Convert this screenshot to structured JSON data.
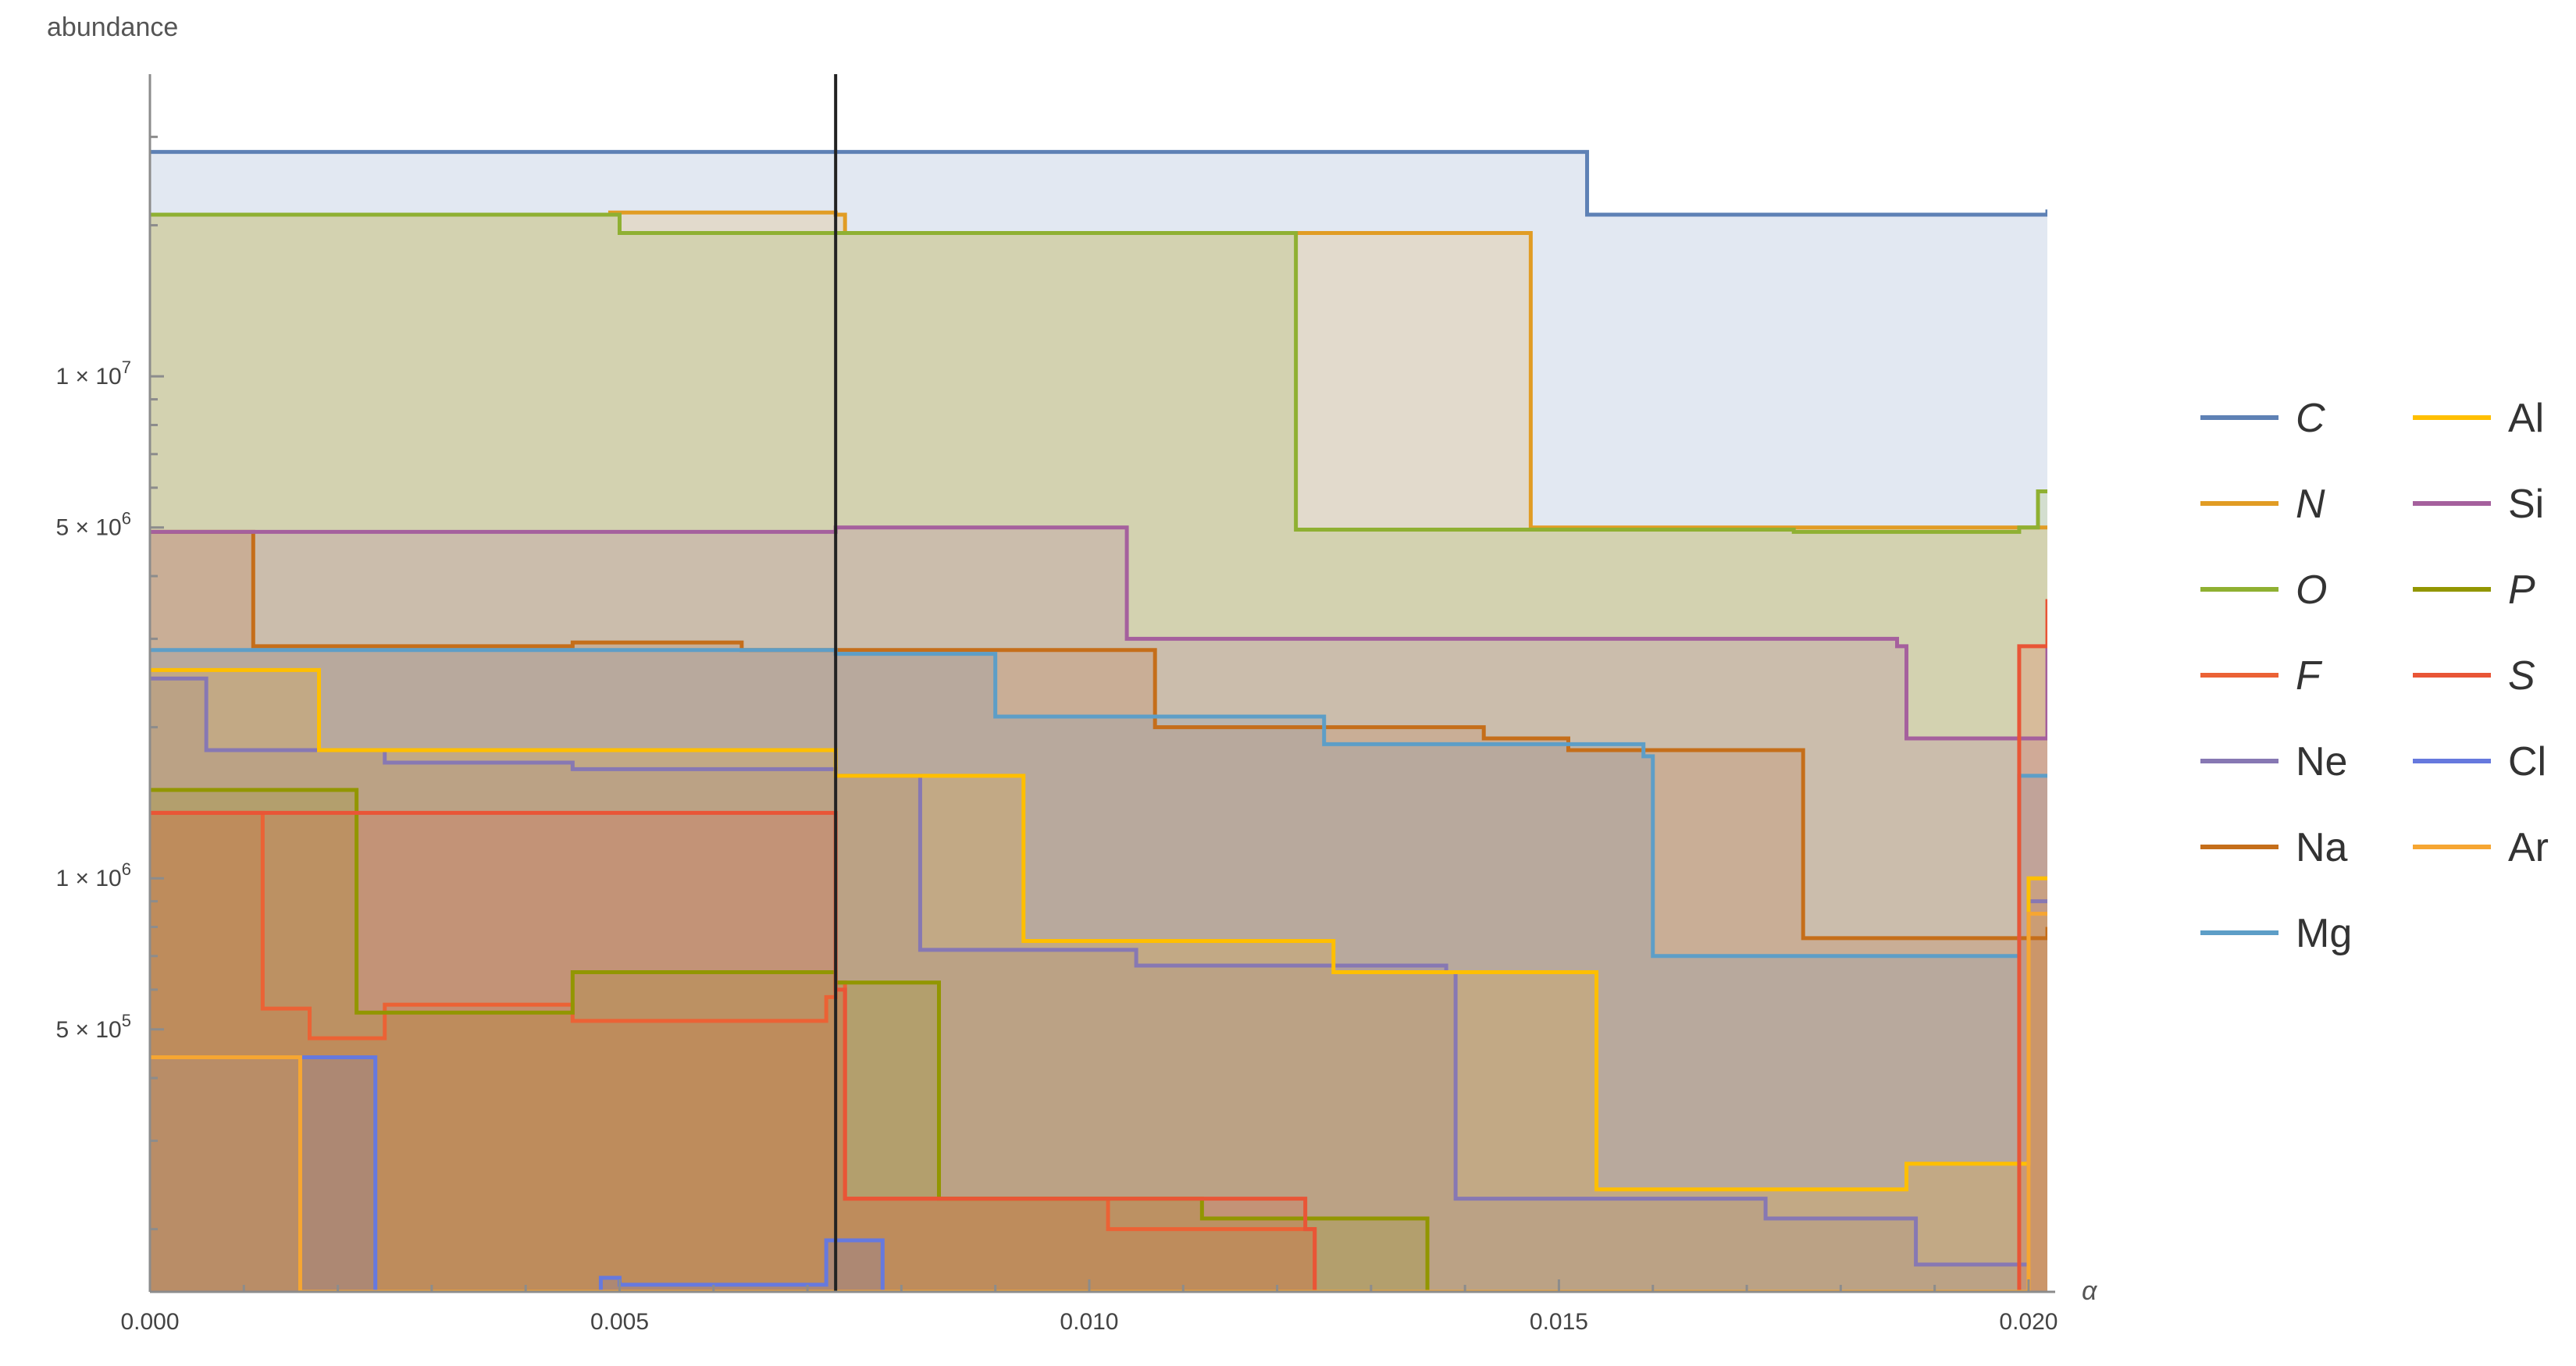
{
  "chart_data": {
    "type": "area",
    "title": "",
    "xlabel": "α",
    "ylabel": "abundance",
    "xlim": [
      0,
      0.0202
    ],
    "ylim": [
      150000,
      40000000
    ],
    "yscale": "log",
    "grid": false,
    "x_ticks": [
      {
        "value": 0.0,
        "label": "0.000"
      },
      {
        "value": 0.005,
        "label": "0.005"
      },
      {
        "value": 0.01,
        "label": "0.010"
      },
      {
        "value": 0.015,
        "label": "0.015"
      },
      {
        "value": 0.02,
        "label": "0.020"
      }
    ],
    "y_ticks": [
      {
        "value": 500000,
        "label": "5 × 10",
        "exp": "5"
      },
      {
        "value": 1000000,
        "label": "1 × 10",
        "exp": "6"
      },
      {
        "value": 5000000,
        "label": "5 × 10",
        "exp": "6"
      },
      {
        "value": 10000000,
        "label": "1 × 10",
        "exp": "7"
      }
    ],
    "y_minor_ticks": [
      200000,
      300000,
      400000,
      600000,
      700000,
      800000,
      900000,
      2000000,
      3000000,
      4000000,
      6000000,
      7000000,
      8000000,
      9000000,
      20000000,
      30000000
    ],
    "vertical_marker": 0.0073,
    "legend_position": "right",
    "series": [
      {
        "name": "C",
        "italic": true,
        "color": "#5e81b5",
        "points": [
          [
            0,
            28000000
          ],
          [
            0.0152,
            28000000
          ],
          [
            0.0153,
            21000000
          ],
          [
            0.0199,
            21000000
          ],
          [
            0.0202,
            21500000
          ]
        ]
      },
      {
        "name": "N",
        "italic": true,
        "color": "#e19c24",
        "points": [
          [
            0,
            21000000
          ],
          [
            0.0049,
            21200000
          ],
          [
            0.0073,
            21000000
          ],
          [
            0.0074,
            19300000
          ],
          [
            0.0146,
            19300000
          ],
          [
            0.0147,
            5000000
          ],
          [
            0.0202,
            5000000
          ]
        ]
      },
      {
        "name": "O",
        "italic": true,
        "color": "#8fb032",
        "points": [
          [
            0,
            21000000
          ],
          [
            0.0049,
            21000000
          ],
          [
            0.005,
            19300000
          ],
          [
            0.0121,
            19300000
          ],
          [
            0.0122,
            4950000
          ],
          [
            0.0175,
            4900000
          ],
          [
            0.0199,
            5000000
          ],
          [
            0.0201,
            5900000
          ],
          [
            0.0202,
            5900000
          ]
        ]
      },
      {
        "name": "F",
        "italic": true,
        "color": "#eb6235",
        "points": [
          [
            0,
            1350000
          ],
          [
            0.0011,
            1350000
          ],
          [
            0.0012,
            550000
          ],
          [
            0.0017,
            480000
          ],
          [
            0.0025,
            560000
          ],
          [
            0.0045,
            520000
          ],
          [
            0.0072,
            580000
          ],
          [
            0.0073,
            620000
          ],
          [
            0.0074,
            230000
          ],
          [
            0.0101,
            230000
          ],
          [
            0.0102,
            200000
          ],
          [
            0.0123,
            200000
          ],
          [
            0.0124,
            150000
          ]
        ]
      },
      {
        "name": "Ne",
        "italic": false,
        "color": "#8778b3",
        "points": [
          [
            0,
            2500000
          ],
          [
            0.0005,
            2500000
          ],
          [
            0.0006,
            1800000
          ],
          [
            0.0025,
            1700000
          ],
          [
            0.0045,
            1650000
          ],
          [
            0.0073,
            1600000
          ],
          [
            0.0081,
            1600000
          ],
          [
            0.0082,
            720000
          ],
          [
            0.0105,
            670000
          ],
          [
            0.0138,
            650000
          ],
          [
            0.0139,
            230000
          ],
          [
            0.0164,
            230000
          ],
          [
            0.0172,
            210000
          ],
          [
            0.0186,
            210000
          ],
          [
            0.0188,
            170000
          ],
          [
            0.0199,
            170000
          ],
          [
            0.02,
            900000
          ],
          [
            0.0202,
            900000
          ]
        ]
      },
      {
        "name": "Na",
        "italic": false,
        "color": "#c56e1a",
        "points": [
          [
            0,
            4900000
          ],
          [
            0.001,
            4900000
          ],
          [
            0.0011,
            2900000
          ],
          [
            0.0045,
            2950000
          ],
          [
            0.0061,
            2950000
          ],
          [
            0.0063,
            2850000
          ],
          [
            0.0105,
            2850000
          ],
          [
            0.0107,
            2000000
          ],
          [
            0.0142,
            1900000
          ],
          [
            0.0151,
            1800000
          ],
          [
            0.0175,
            1800000
          ],
          [
            0.0176,
            760000
          ],
          [
            0.0202,
            800000
          ]
        ]
      },
      {
        "name": "Mg",
        "italic": false,
        "color": "#5d9ec7",
        "points": [
          [
            0,
            2850000
          ],
          [
            0.0045,
            2850000
          ],
          [
            0.0073,
            2800000
          ],
          [
            0.0089,
            2800000
          ],
          [
            0.009,
            2100000
          ],
          [
            0.0125,
            1850000
          ],
          [
            0.0159,
            1750000
          ],
          [
            0.016,
            700000
          ],
          [
            0.0198,
            700000
          ],
          [
            0.0199,
            1600000
          ],
          [
            0.0202,
            1600000
          ]
        ]
      },
      {
        "name": "Al",
        "italic": false,
        "color": "#ffbf00",
        "points": [
          [
            0,
            2600000
          ],
          [
            0.0017,
            2600000
          ],
          [
            0.0018,
            1800000
          ],
          [
            0.0047,
            1800000
          ],
          [
            0.0073,
            1600000
          ],
          [
            0.0081,
            1600000
          ],
          [
            0.0092,
            1600000
          ],
          [
            0.0093,
            750000
          ],
          [
            0.0126,
            650000
          ],
          [
            0.0139,
            650000
          ],
          [
            0.0153,
            650000
          ],
          [
            0.0154,
            240000
          ],
          [
            0.0175,
            240000
          ],
          [
            0.0187,
            270000
          ],
          [
            0.0199,
            270000
          ],
          [
            0.02,
            1000000
          ],
          [
            0.0202,
            1000000
          ]
        ]
      },
      {
        "name": "Si",
        "italic": false,
        "color": "#a5609d",
        "points": [
          [
            0,
            4900000
          ],
          [
            0.0073,
            5000000
          ],
          [
            0.0103,
            5000000
          ],
          [
            0.0104,
            3000000
          ],
          [
            0.0186,
            2900000
          ],
          [
            0.0187,
            1900000
          ],
          [
            0.0202,
            2900000
          ]
        ]
      },
      {
        "name": "P",
        "italic": true,
        "color": "#929600",
        "points": [
          [
            0,
            1500000
          ],
          [
            0.0021,
            1500000
          ],
          [
            0.0022,
            540000
          ],
          [
            0.0045,
            650000
          ],
          [
            0.0073,
            620000
          ],
          [
            0.0083,
            620000
          ],
          [
            0.0084,
            230000
          ],
          [
            0.0112,
            210000
          ],
          [
            0.0135,
            210000
          ],
          [
            0.0136,
            150000
          ]
        ]
      },
      {
        "name": "S",
        "italic": true,
        "color": "#e95536",
        "points": [
          [
            0,
            1350000
          ],
          [
            0.0011,
            1350000
          ],
          [
            0.0073,
            600000
          ],
          [
            0.0074,
            230000
          ],
          [
            0.0123,
            200000
          ],
          [
            0.0124,
            150000
          ],
          [
            0.0199,
            2900000
          ],
          [
            0.0202,
            3600000
          ]
        ]
      },
      {
        "name": "Cl",
        "italic": false,
        "color": "#6679de",
        "points": [
          [
            0,
            440000
          ],
          [
            0.0023,
            440000
          ],
          [
            0.0024,
            150000
          ],
          [
            0.0048,
            160000
          ],
          [
            0.005,
            155000
          ],
          [
            0.0071,
            155000
          ],
          [
            0.0072,
            190000
          ],
          [
            0.0077,
            190000
          ],
          [
            0.0078,
            150000
          ]
        ]
      },
      {
        "name": "Ar",
        "italic": false,
        "color": "#f6a632",
        "points": [
          [
            0,
            440000
          ],
          [
            0.0015,
            440000
          ],
          [
            0.0016,
            150000
          ],
          [
            0.0199,
            150000
          ],
          [
            0.02,
            850000
          ],
          [
            0.0202,
            850000
          ]
        ]
      }
    ],
    "legend_columns": [
      [
        "C",
        "N",
        "O",
        "F",
        "Ne",
        "Na",
        "Mg"
      ],
      [
        "Al",
        "Si",
        "P",
        "S",
        "Cl",
        "Ar"
      ]
    ]
  }
}
